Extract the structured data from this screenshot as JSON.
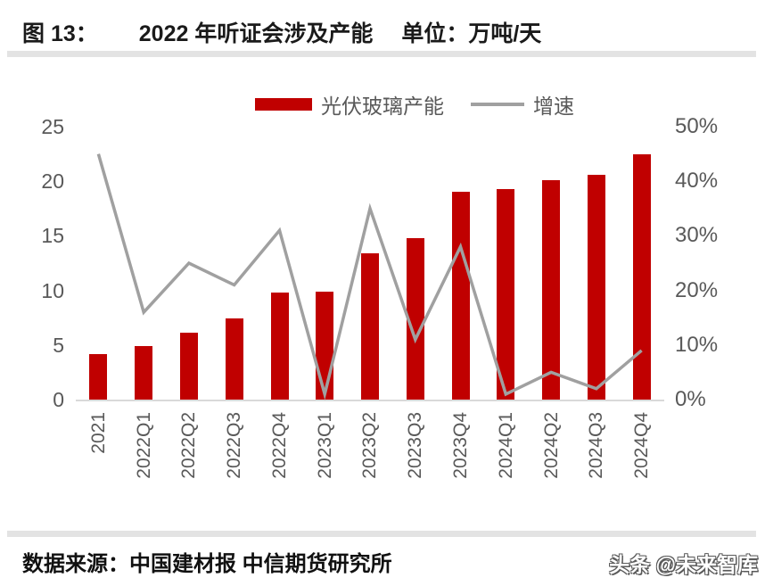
{
  "header": {
    "figure_label": "图 13：",
    "title": "2022 年听证会涉及产能",
    "unit": "单位：万吨/天"
  },
  "chart_data": {
    "type": "bar",
    "title": "2022 年听证会涉及产能",
    "categories": [
      "2021",
      "2022Q1",
      "2022Q2",
      "2022Q3",
      "2022Q4",
      "2023Q1",
      "2023Q2",
      "2023Q3",
      "2023Q4",
      "2024Q1",
      "2024Q2",
      "2024Q3",
      "2024Q4"
    ],
    "series": [
      {
        "name": "光伏玻璃产能",
        "type": "bar",
        "axis": "left",
        "color": "#c00000",
        "values": [
          4.2,
          4.9,
          6.1,
          7.4,
          9.8,
          9.9,
          13.4,
          14.8,
          19.0,
          19.3,
          20.1,
          20.6,
          22.5
        ]
      },
      {
        "name": "增速",
        "type": "line",
        "axis": "right",
        "color": "#a0a0a0",
        "values_pct": [
          45,
          16,
          25,
          21,
          31,
          1,
          35,
          11,
          28,
          1,
          5,
          2,
          9
        ]
      }
    ],
    "y_left": {
      "min": 0,
      "max": 25,
      "ticks": [
        "0",
        "5",
        "10",
        "15",
        "20",
        "25"
      ]
    },
    "y_right": {
      "min": 0,
      "max": 50,
      "ticks": [
        "0%",
        "10%",
        "20%",
        "30%",
        "40%",
        "50%"
      ]
    },
    "grid": false,
    "legend_position": "top"
  },
  "footer": {
    "source": "数据来源：中国建材报  中信期货研究所",
    "watermark": "头条 @未来智库"
  },
  "colors": {
    "bar": "#c00000",
    "line": "#a0a0a0",
    "axis_text": "#595959",
    "divider": "#e3e3e3",
    "baseline": "#d9d9d9"
  }
}
